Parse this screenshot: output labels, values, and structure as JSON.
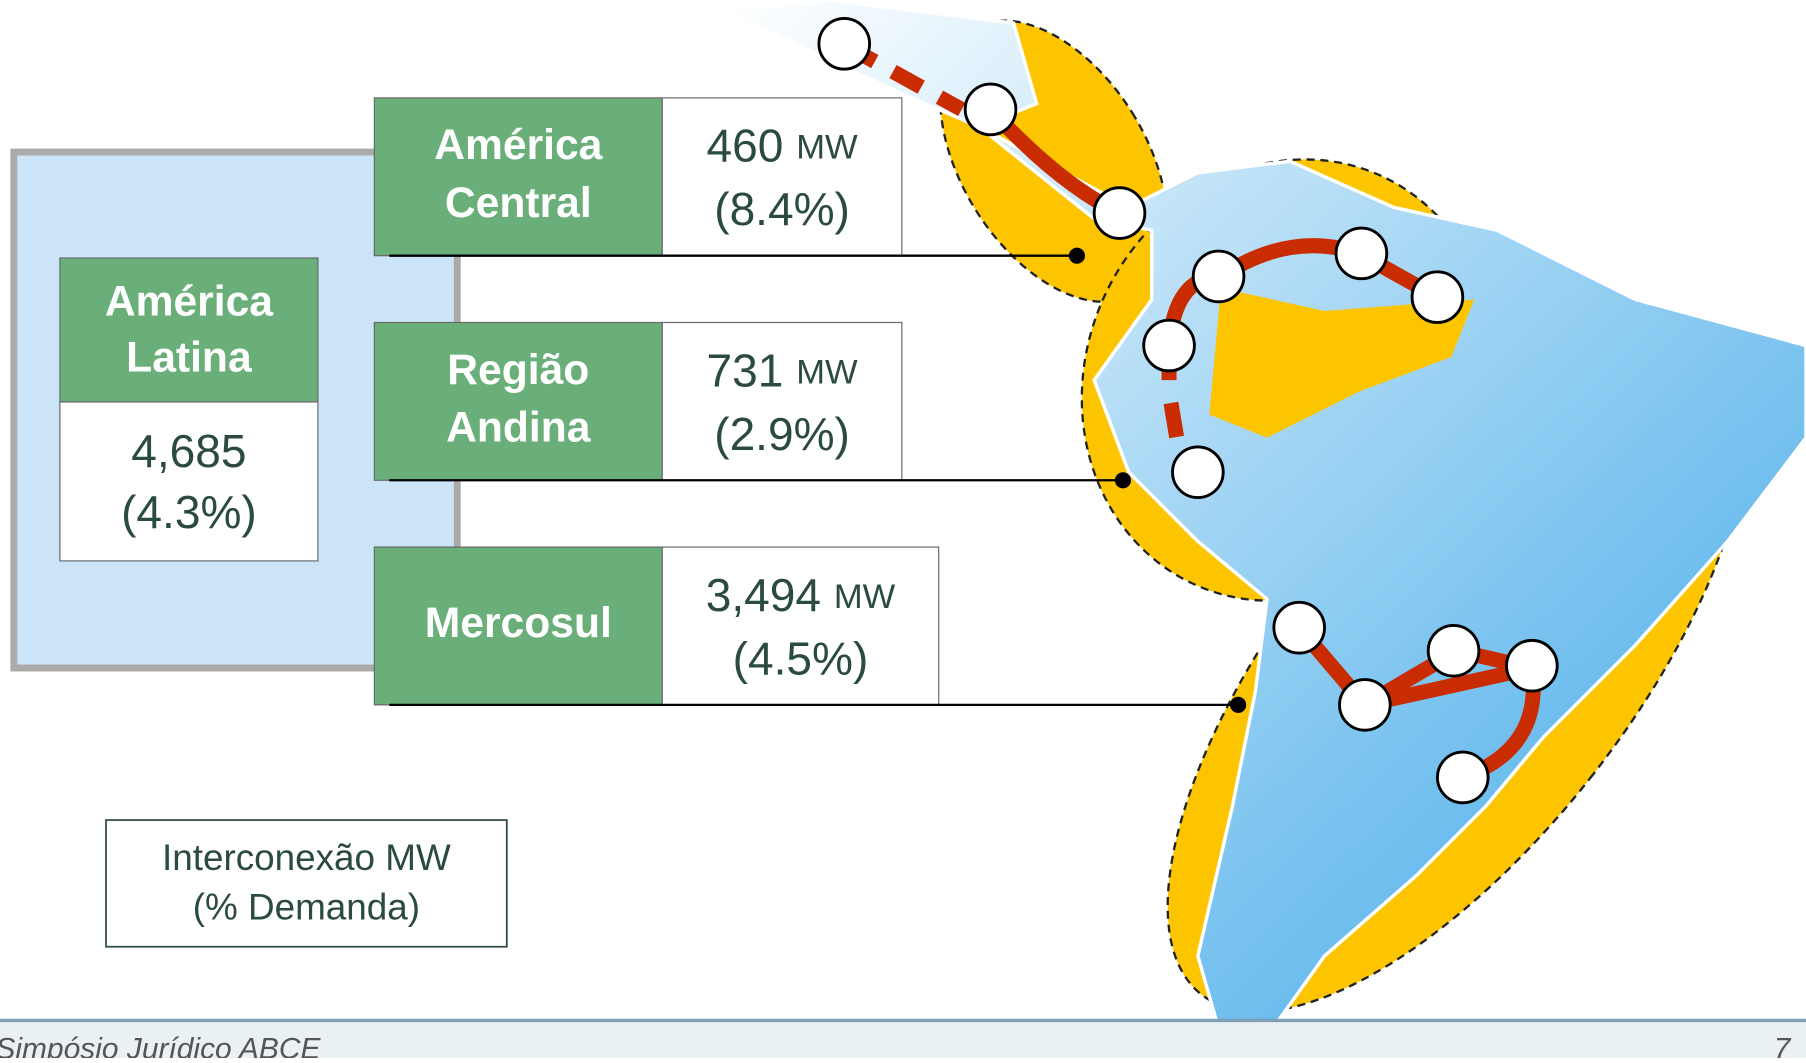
{
  "latin": {
    "name": [
      "América",
      "Latina"
    ],
    "total": "4,685",
    "pct": "(4.3%)"
  },
  "regions": [
    {
      "name": [
        "América",
        "Central"
      ],
      "mw": "460",
      "unit": "MW",
      "pct": "(8.4%)"
    },
    {
      "name": [
        "Região",
        "Andina"
      ],
      "mw": "731",
      "unit": "MW",
      "pct": "(2.9%)"
    },
    {
      "name": [
        "Mercosul"
      ],
      "mw": "3,494",
      "unit": "MW",
      "pct": "(4.5%)"
    }
  ],
  "legend": [
    "Interconexão MW",
    "(% Demanda)"
  ],
  "footer": {
    "text": "Simpósio Jurídico ABCE",
    "page": "7"
  }
}
